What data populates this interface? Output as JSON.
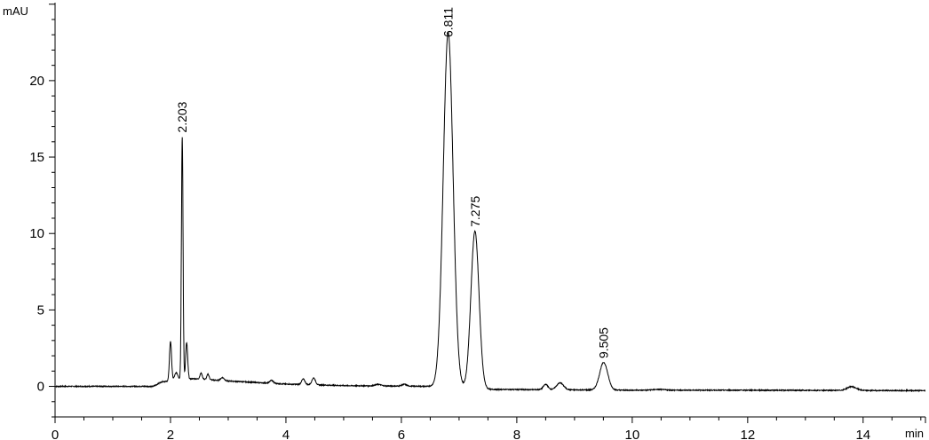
{
  "chart_data": {
    "type": "line",
    "title": "",
    "xlabel": "min",
    "ylabel": "mAU",
    "xlim": [
      0,
      15.08
    ],
    "ylim": [
      -2,
      25.1
    ],
    "x_ticks": [
      0,
      2,
      4,
      6,
      8,
      10,
      12,
      14
    ],
    "x_tick_labels": [
      "0",
      "2",
      "4",
      "6",
      "8",
      "10",
      "12",
      "14"
    ],
    "y_ticks": [
      0,
      5,
      10,
      15,
      20
    ],
    "y_tick_labels": [
      "0",
      "5",
      "10",
      "15",
      "20"
    ],
    "grid": false,
    "line_color": "#000000",
    "peak_labels": [
      "2.203",
      "6.811",
      "7.275",
      "9.505"
    ],
    "peaks": [
      {
        "rt": 2.0,
        "height": 2.6,
        "sigma": 0.018
      },
      {
        "rt": 2.1,
        "height": 0.5,
        "sigma": 0.03
      },
      {
        "rt": 2.203,
        "height": 15.9,
        "sigma": 0.014,
        "label": "2.203"
      },
      {
        "rt": 2.28,
        "height": 2.4,
        "sigma": 0.018
      },
      {
        "rt": 2.53,
        "height": 0.4,
        "sigma": 0.02
      },
      {
        "rt": 2.65,
        "height": 0.35,
        "sigma": 0.02
      },
      {
        "rt": 2.9,
        "height": 0.2,
        "sigma": 0.03
      },
      {
        "rt": 3.75,
        "height": 0.2,
        "sigma": 0.03
      },
      {
        "rt": 4.3,
        "height": 0.35,
        "sigma": 0.03
      },
      {
        "rt": 4.48,
        "height": 0.45,
        "sigma": 0.03
      },
      {
        "rt": 5.6,
        "height": 0.1,
        "sigma": 0.05
      },
      {
        "rt": 6.05,
        "height": 0.12,
        "sigma": 0.04
      },
      {
        "rt": 6.811,
        "height": 23.2,
        "sigma": 0.085,
        "label": "6.811"
      },
      {
        "rt": 7.275,
        "height": 10.3,
        "sigma": 0.07,
        "label": "7.275"
      },
      {
        "rt": 8.5,
        "height": 0.35,
        "sigma": 0.04
      },
      {
        "rt": 8.75,
        "height": 0.45,
        "sigma": 0.06
      },
      {
        "rt": 9.505,
        "height": 1.8,
        "sigma": 0.07,
        "label": "9.505"
      },
      {
        "rt": 10.45,
        "height": 0.05,
        "sigma": 0.1
      },
      {
        "rt": 13.8,
        "height": 0.25,
        "sigma": 0.08
      }
    ],
    "baseline": [
      [
        0,
        0
      ],
      [
        1.7,
        0
      ],
      [
        1.85,
        0.3
      ],
      [
        2.4,
        0.5
      ],
      [
        3.0,
        0.35
      ],
      [
        4.0,
        0.15
      ],
      [
        5.0,
        0.05
      ],
      [
        6.5,
        0.0
      ],
      [
        7.6,
        -0.2
      ],
      [
        10,
        -0.25
      ],
      [
        12,
        -0.25
      ],
      [
        15.08,
        -0.28
      ]
    ]
  }
}
